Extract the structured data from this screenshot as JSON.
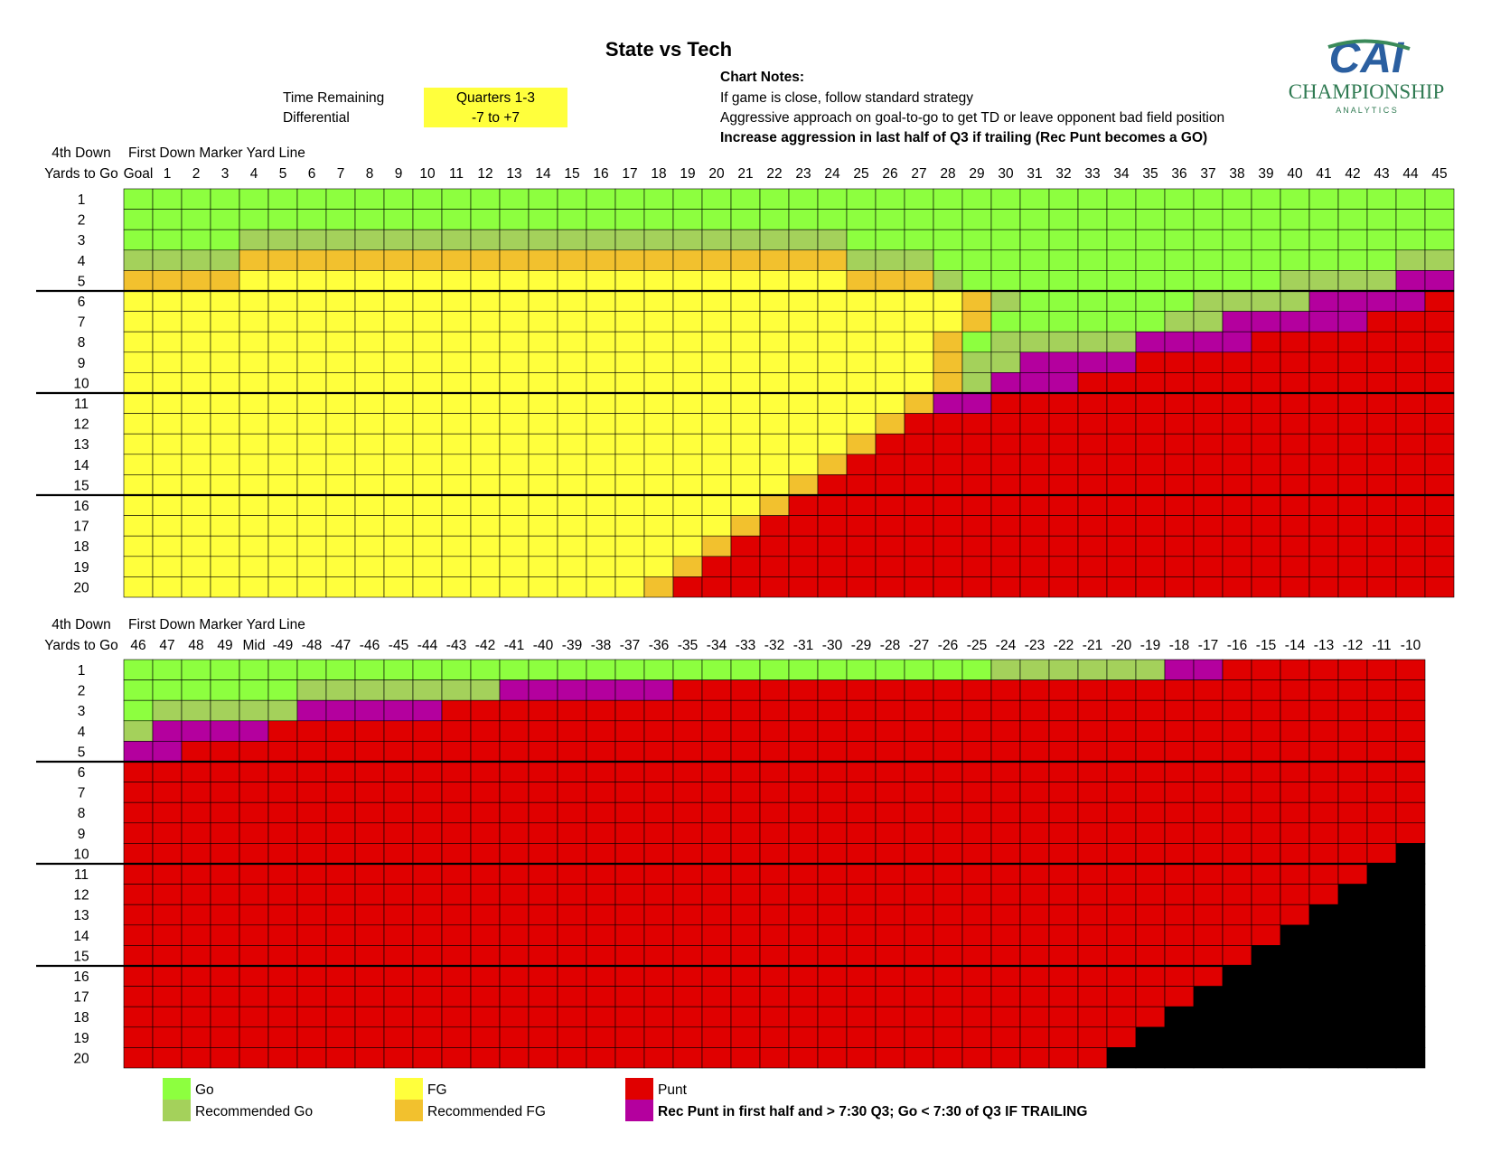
{
  "title": "State vs Tech",
  "settings": {
    "time_label": "Time Remaining",
    "time_value": "Quarters 1-3",
    "diff_label": "Differential",
    "diff_value": "-7 to +7"
  },
  "notes": {
    "heading": "Chart Notes:",
    "lines": [
      "If game is close, follow standard strategy",
      "Aggressive approach on goal-to-go to get TD or leave opponent bad field position",
      "Increase aggression in last half of Q3 if trailing (Rec Punt becomes a GO)"
    ]
  },
  "logo": {
    "text": "CAI",
    "name": "CHAMPIONSHIP",
    "sub": "A N A L Y T I C S"
  },
  "colors": {
    "G": "#8dff3f",
    "RG": "#a4d15b",
    "FG": "#ffff3c",
    "RFG": "#f2c12e",
    "P": "#e00000",
    "RP": "#b4009e",
    "X": "#000000"
  },
  "chart_data": {
    "type": "heatmap",
    "row_header_top": "4th Down",
    "row_header_bottom": "Yards to Go",
    "col_header": "First Down Marker Yard Line",
    "rows": [
      1,
      2,
      3,
      4,
      5,
      6,
      7,
      8,
      9,
      10,
      11,
      12,
      13,
      14,
      15,
      16,
      17,
      18,
      19,
      20
    ],
    "legend": [
      {
        "code": "G",
        "label": "Go"
      },
      {
        "code": "RG",
        "label": "Recommended Go"
      },
      {
        "code": "FG",
        "label": "FG"
      },
      {
        "code": "RFG",
        "label": "Recommended FG"
      },
      {
        "code": "P",
        "label": "Punt"
      },
      {
        "code": "RP",
        "label": "Rec Punt in first half and > 7:30 Q3; Go < 7:30 of Q3 IF TRAILING"
      }
    ],
    "grids": [
      {
        "columns": [
          "Goal",
          "1",
          "2",
          "3",
          "4",
          "5",
          "6",
          "7",
          "8",
          "9",
          "10",
          "11",
          "12",
          "13",
          "14",
          "15",
          "16",
          "17",
          "18",
          "19",
          "20",
          "21",
          "22",
          "23",
          "24",
          "25",
          "26",
          "27",
          "28",
          "29",
          "30",
          "31",
          "32",
          "33",
          "34",
          "35",
          "36",
          "37",
          "38",
          "39",
          "40",
          "41",
          "42",
          "43",
          "44",
          "45"
        ],
        "cells": [
          [
            "G:46"
          ],
          [
            "G:46"
          ],
          [
            "G:4",
            "RG:21",
            "G:21"
          ],
          [
            "RG:4",
            "RFG:21",
            "RG:3",
            "G:16",
            "RG:2"
          ],
          [
            "RFG:4",
            "FG:21",
            "RFG:3",
            "RG:1",
            "G:11",
            "RG:4",
            "RP:2"
          ],
          [
            "FG:29",
            "RFG:1",
            "RG:1",
            "G:6",
            "RG:4",
            "RP:4",
            "P:1"
          ],
          [
            "FG:29",
            "RFG:1",
            "G:6",
            "RG:2",
            "RP:5",
            "P:3"
          ],
          [
            "FG:28",
            "RFG:1",
            "G:1",
            "RG:5",
            "RP:4",
            "P:7"
          ],
          [
            "FG:28",
            "RFG:1",
            "RG:2",
            "RP:4",
            "RP:0",
            "P:11"
          ],
          [
            "FG:28",
            "RFG:1",
            "RG:1",
            "RP:3",
            "P:13"
          ],
          [
            "FG:27",
            "RFG:1",
            "RP:2",
            "P:16"
          ],
          [
            "FG:26",
            "RFG:1",
            "P:19"
          ],
          [
            "FG:25",
            "RFG:1",
            "P:20"
          ],
          [
            "FG:24",
            "RFG:1",
            "P:21"
          ],
          [
            "FG:23",
            "RFG:1",
            "P:22"
          ],
          [
            "FG:22",
            "RFG:1",
            "P:23"
          ],
          [
            "FG:21",
            "RFG:1",
            "P:24"
          ],
          [
            "FG:20",
            "RFG:1",
            "P:25"
          ],
          [
            "FG:19",
            "RFG:1",
            "P:26"
          ],
          [
            "FG:18",
            "RFG:1",
            "P:27"
          ]
        ]
      },
      {
        "columns": [
          "46",
          "47",
          "48",
          "49",
          "Mid",
          "-49",
          "-48",
          "-47",
          "-46",
          "-45",
          "-44",
          "-43",
          "-42",
          "-41",
          "-40",
          "-39",
          "-38",
          "-37",
          "-36",
          "-35",
          "-34",
          "-33",
          "-32",
          "-31",
          "-30",
          "-29",
          "-28",
          "-27",
          "-26",
          "-25",
          "-24",
          "-23",
          "-22",
          "-21",
          "-20",
          "-19",
          "-18",
          "-17",
          "-16",
          "-15",
          "-14",
          "-13",
          "-12",
          "-11",
          "-10"
        ],
        "cells": [
          [
            "G:30",
            "RG:6",
            "RP:2",
            "P:7"
          ],
          [
            "G:6",
            "RG:7",
            "RP:6",
            "P:26"
          ],
          [
            "G:1",
            "RG:5",
            "RP:5",
            "P:34"
          ],
          [
            "RG:1",
            "RP:4",
            "P:40"
          ],
          [
            "RP:2",
            "P:43"
          ],
          [
            "P:45"
          ],
          [
            "P:45"
          ],
          [
            "P:45"
          ],
          [
            "P:45"
          ],
          [
            "P:44",
            "X:1"
          ],
          [
            "P:43",
            "X:2"
          ],
          [
            "P:42",
            "X:3"
          ],
          [
            "P:41",
            "X:4"
          ],
          [
            "P:40",
            "X:5"
          ],
          [
            "P:39",
            "X:6"
          ],
          [
            "P:38",
            "X:7"
          ],
          [
            "P:37",
            "X:8"
          ],
          [
            "P:36",
            "X:9"
          ],
          [
            "P:35",
            "X:10"
          ],
          [
            "P:34",
            "X:11"
          ]
        ]
      }
    ]
  }
}
